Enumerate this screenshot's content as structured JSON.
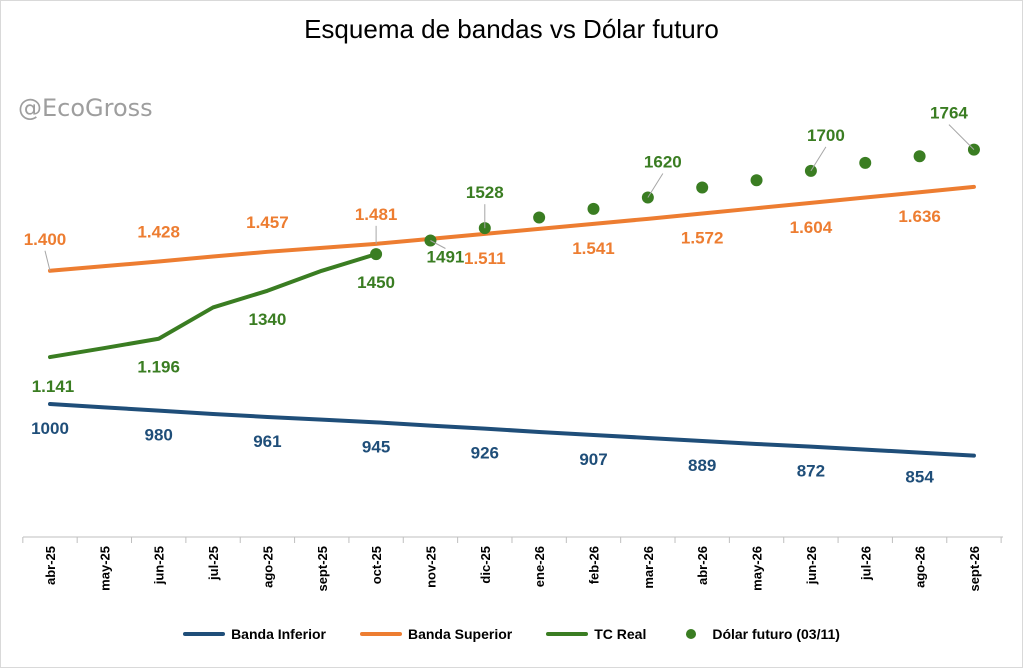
{
  "watermark": "@EcoGross",
  "chart_data": {
    "type": "line",
    "title": "Esquema de bandas vs Dólar futuro",
    "categories": [
      "abr-25",
      "may-25",
      "jun-25",
      "jul-25",
      "ago-25",
      "sept-25",
      "oct-25",
      "nov-25",
      "dic-25",
      "ene-26",
      "feb-26",
      "mar-26",
      "abr-26",
      "may-26",
      "jun-26",
      "jul-26",
      "ago-26",
      "sept-26"
    ],
    "ylim": [
      500,
      1900
    ],
    "legend_position": "bottom",
    "grid": false,
    "series": [
      {
        "name": "Banda Inferior",
        "color": "#1f4e79",
        "style": "line",
        "values": [
          1000,
          990,
          980,
          970,
          961,
          953,
          945,
          935,
          926,
          916,
          907,
          898,
          889,
          880,
          872,
          863,
          854,
          845
        ],
        "labels": [
          {
            "i": 0,
            "text": "1000"
          },
          {
            "i": 2,
            "text": "980"
          },
          {
            "i": 4,
            "text": "961"
          },
          {
            "i": 6,
            "text": "945"
          },
          {
            "i": 8,
            "text": "926"
          },
          {
            "i": 10,
            "text": "907"
          },
          {
            "i": 12,
            "text": "889"
          },
          {
            "i": 14,
            "text": "872"
          },
          {
            "i": 16,
            "text": "854"
          }
        ]
      },
      {
        "name": "Banda Superior",
        "color": "#ed7d31",
        "style": "line",
        "values": [
          1400,
          1414,
          1428,
          1443,
          1457,
          1469,
          1481,
          1496,
          1511,
          1526,
          1541,
          1556,
          1572,
          1588,
          1604,
          1620,
          1636,
          1652
        ],
        "labels": [
          {
            "i": 0,
            "text": "1.400"
          },
          {
            "i": 2,
            "text": "1.428"
          },
          {
            "i": 4,
            "text": "1.457"
          },
          {
            "i": 6,
            "text": "1.481"
          },
          {
            "i": 8,
            "text": "1.511"
          },
          {
            "i": 10,
            "text": "1.541"
          },
          {
            "i": 12,
            "text": "1.572"
          },
          {
            "i": 14,
            "text": "1.604"
          },
          {
            "i": 16,
            "text": "1.636"
          }
        ]
      },
      {
        "name": "TC Real",
        "color": "#3a7d22",
        "style": "line",
        "values": [
          1141,
          1168,
          1196,
          1290,
          1340,
          1400,
          1450,
          null,
          null,
          null,
          null,
          null,
          null,
          null,
          null,
          null,
          null,
          null
        ],
        "labels": [
          {
            "i": 0,
            "text": "1.141"
          },
          {
            "i": 2,
            "text": "1.196"
          },
          {
            "i": 4,
            "text": "1340"
          },
          {
            "i": 6,
            "text": "1450"
          }
        ]
      },
      {
        "name": "Dólar futuro (03/11)",
        "color": "#3a7d22",
        "style": "scatter",
        "values": [
          null,
          null,
          null,
          null,
          null,
          null,
          1450,
          1491,
          1528,
          1560,
          1586,
          1620,
          1650,
          1672,
          1700,
          1724,
          1744,
          1764
        ],
        "labels": [
          {
            "i": 7,
            "text": "1491"
          },
          {
            "i": 8,
            "text": "1528"
          },
          {
            "i": 11,
            "text": "1620"
          },
          {
            "i": 14,
            "text": "1700"
          },
          {
            "i": 17,
            "text": "1764"
          }
        ]
      }
    ]
  }
}
